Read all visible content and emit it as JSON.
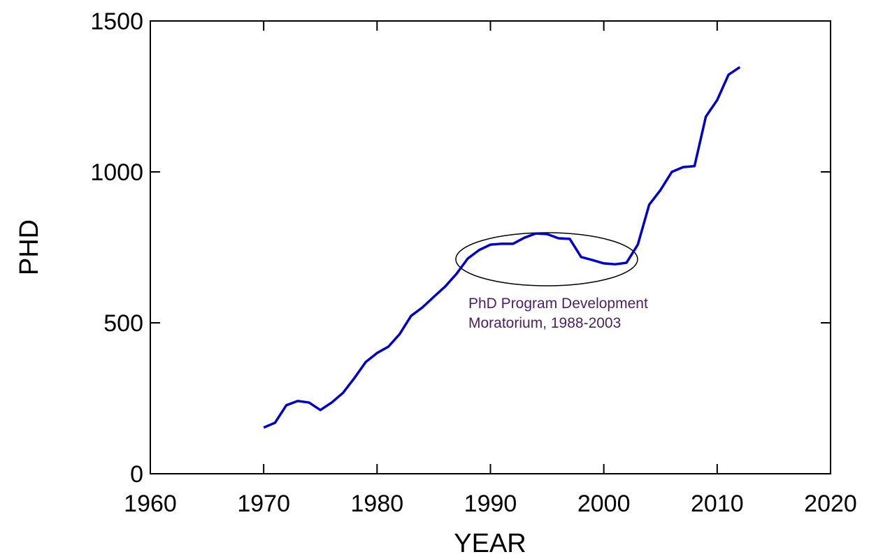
{
  "chart_data": {
    "type": "line",
    "xlabel": "YEAR",
    "ylabel": "PHD",
    "annotation": [
      "PhD Program Development",
      "Moratorium, 1988-2003"
    ],
    "x": [
      1970,
      1971,
      1972,
      1973,
      1974,
      1975,
      1976,
      1977,
      1978,
      1979,
      1980,
      1981,
      1982,
      1983,
      1984,
      1985,
      1986,
      1987,
      1988,
      1989,
      1990,
      1991,
      1992,
      1993,
      1994,
      1995,
      1996,
      1997,
      1998,
      1999,
      2000,
      2001,
      2002,
      2003,
      2004,
      2005,
      2006,
      2007,
      2008,
      2009,
      2010,
      2011,
      2012
    ],
    "series": [
      {
        "color": "#0000cc",
        "values": [
          153,
          169,
          227,
          241,
          236,
          211,
          236,
          268,
          317,
          370,
          400,
          421,
          463,
          523,
          551,
          586,
          620,
          662,
          713,
          741,
          759,
          762,
          762,
          782,
          796,
          794,
          780,
          778,
          718,
          708,
          697,
          694,
          699,
          759,
          891,
          940,
          1000,
          1016,
          1019,
          1183,
          1238,
          1322,
          1347
        ]
      }
    ],
    "xlim": [
      1960,
      2020
    ],
    "xticks": [
      1960,
      1970,
      1980,
      1990,
      2000,
      2010,
      2020
    ],
    "ylim": [
      0,
      1500
    ],
    "yticks": [
      0,
      500,
      1000,
      1500
    ],
    "grid": false
  }
}
